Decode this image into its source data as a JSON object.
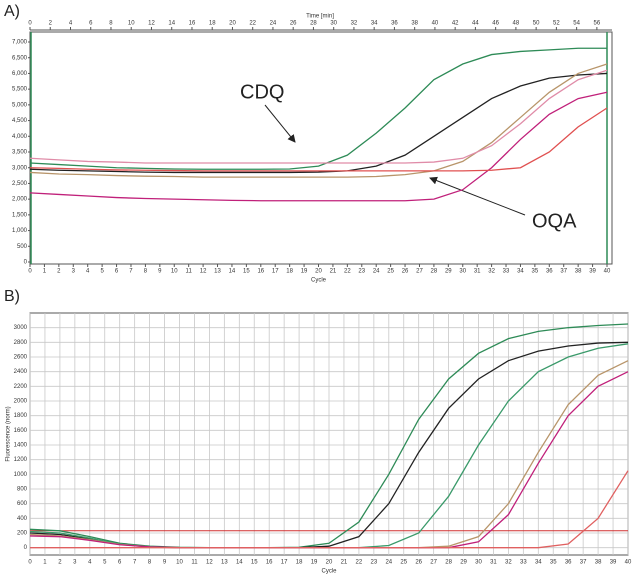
{
  "chart_data": [
    {
      "type": "line",
      "panel": "A)",
      "xlabel": "Cycle",
      "x2label": "Time [min]",
      "x": [
        0,
        2,
        4,
        6,
        8,
        10,
        12,
        14,
        16,
        18,
        20,
        22,
        24,
        26,
        28,
        30,
        32,
        34,
        36,
        38,
        40
      ],
      "xlim": [
        0,
        40
      ],
      "xticks": [
        0,
        1,
        2,
        3,
        4,
        5,
        6,
        7,
        8,
        9,
        10,
        11,
        12,
        13,
        14,
        15,
        16,
        17,
        18,
        19,
        20,
        21,
        22,
        23,
        24,
        25,
        26,
        27,
        28,
        29,
        30,
        31,
        32,
        33,
        34,
        35,
        36,
        37,
        38,
        39,
        40
      ],
      "x2lim": [
        0,
        57
      ],
      "x2ticks": [
        0,
        2,
        4,
        6,
        8,
        10,
        12,
        14,
        16,
        18,
        20,
        22,
        24,
        26,
        28,
        30,
        32,
        34,
        36,
        38,
        40,
        42,
        44,
        46,
        48,
        50,
        52,
        54,
        56
      ],
      "ylim": [
        0,
        7000
      ],
      "yticks": [
        0,
        500,
        {
          "value": 1000,
          "label": "1,000"
        },
        {
          "value": 1500,
          "label": "1,500"
        },
        {
          "value": 2000,
          "label": "2,000"
        },
        {
          "value": 2500,
          "label": "2,500"
        },
        {
          "value": 3000,
          "label": "3,000"
        },
        {
          "value": 3500,
          "label": "3,500"
        },
        {
          "value": 4000,
          "label": "4,000"
        },
        {
          "value": 4500,
          "label": "4,500"
        },
        {
          "value": 5000,
          "label": "5,000"
        },
        {
          "value": 5500,
          "label": "5,500"
        },
        {
          "value": 6000,
          "label": "6,000"
        },
        {
          "value": 6500,
          "label": "6,500"
        },
        {
          "value": 7000,
          "label": "7,000"
        }
      ],
      "grid": false,
      "series": [
        {
          "color": "#2e8b57",
          "values": [
            3150,
            3100,
            3050,
            3000,
            2980,
            2960,
            2950,
            2950,
            2950,
            2960,
            3050,
            3400,
            4100,
            4900,
            5800,
            6300,
            6600,
            6700,
            6750,
            6800,
            6800
          ]
        },
        {
          "color": "#222222",
          "values": [
            2950,
            2920,
            2900,
            2880,
            2860,
            2850,
            2850,
            2850,
            2850,
            2850,
            2860,
            2900,
            3050,
            3400,
            4000,
            4600,
            5200,
            5600,
            5850,
            5950,
            6000
          ]
        },
        {
          "color": "#b8956a",
          "values": [
            2850,
            2800,
            2780,
            2750,
            2730,
            2720,
            2700,
            2700,
            2700,
            2700,
            2700,
            2700,
            2720,
            2780,
            2900,
            3200,
            3800,
            4600,
            5400,
            6000,
            6300
          ]
        },
        {
          "color": "#e08ca8",
          "values": [
            3300,
            3250,
            3200,
            3180,
            3150,
            3150,
            3150,
            3150,
            3150,
            3150,
            3150,
            3150,
            3150,
            3150,
            3180,
            3300,
            3700,
            4400,
            5200,
            5800,
            6100
          ]
        },
        {
          "color": "#c0207a",
          "values": [
            2200,
            2150,
            2100,
            2050,
            2020,
            2000,
            1980,
            1960,
            1950,
            1950,
            1950,
            1950,
            1950,
            1950,
            2000,
            2300,
            3000,
            3900,
            4700,
            5200,
            5400
          ]
        },
        {
          "color": "#e05050",
          "values": [
            3000,
            2980,
            2950,
            2930,
            2920,
            2910,
            2900,
            2900,
            2900,
            2900,
            2900,
            2900,
            2900,
            2900,
            2900,
            2900,
            2920,
            3000,
            3500,
            4300,
            4900
          ]
        }
      ],
      "annotations": [
        "CDQ",
        "OQA"
      ]
    },
    {
      "type": "line",
      "panel": "B)",
      "xlabel": "Cycle",
      "ylabel": "Fluorescence (norm)",
      "x": [
        0,
        2,
        4,
        6,
        8,
        10,
        12,
        14,
        16,
        18,
        20,
        22,
        24,
        26,
        28,
        30,
        32,
        34,
        36,
        38,
        40
      ],
      "xlim": [
        0,
        40
      ],
      "xticks": [
        0,
        1,
        2,
        3,
        4,
        5,
        6,
        7,
        8,
        9,
        10,
        11,
        12,
        13,
        14,
        15,
        16,
        17,
        18,
        19,
        20,
        21,
        22,
        23,
        24,
        25,
        26,
        27,
        28,
        29,
        30,
        31,
        32,
        33,
        34,
        35,
        36,
        37,
        38,
        39,
        40
      ],
      "ylim": [
        -100,
        3200
      ],
      "yticks": [
        0,
        200,
        400,
        600,
        800,
        1000,
        1200,
        1400,
        1600,
        1800,
        2000,
        2200,
        2400,
        2600,
        2800,
        3000
      ],
      "grid": true,
      "threshold": 230,
      "threshold_color": "#d03030",
      "series": [
        {
          "color": "#2e8b57",
          "values": [
            250,
            230,
            150,
            60,
            20,
            5,
            0,
            0,
            0,
            5,
            60,
            350,
            1000,
            1750,
            2300,
            2650,
            2850,
            2950,
            3000,
            3030,
            3050
          ]
        },
        {
          "color": "#222222",
          "values": [
            200,
            180,
            120,
            50,
            15,
            0,
            0,
            0,
            0,
            0,
            20,
            150,
            600,
            1300,
            1900,
            2300,
            2550,
            2680,
            2750,
            2790,
            2800
          ]
        },
        {
          "color": "#3a9a6a",
          "values": [
            220,
            200,
            130,
            50,
            15,
            0,
            0,
            0,
            0,
            0,
            0,
            0,
            30,
            200,
            700,
            1400,
            2000,
            2400,
            2600,
            2720,
            2780
          ]
        },
        {
          "color": "#b8956a",
          "values": [
            180,
            160,
            110,
            45,
            10,
            0,
            0,
            0,
            0,
            0,
            0,
            0,
            0,
            0,
            20,
            150,
            600,
            1300,
            1950,
            2350,
            2550
          ]
        },
        {
          "color": "#c0207a",
          "values": [
            160,
            150,
            100,
            40,
            10,
            0,
            0,
            0,
            0,
            0,
            0,
            0,
            0,
            0,
            0,
            80,
            450,
            1150,
            1800,
            2200,
            2400
          ]
        },
        {
          "color": "#e06060",
          "values": [
            0,
            0,
            0,
            0,
            0,
            0,
            0,
            0,
            0,
            0,
            0,
            0,
            0,
            0,
            0,
            0,
            0,
            0,
            50,
            400,
            1050
          ]
        }
      ]
    }
  ]
}
